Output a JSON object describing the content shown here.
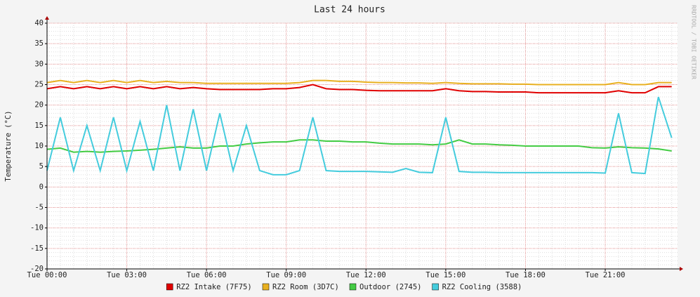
{
  "chart_data": {
    "type": "line",
    "title": "Last 24 hours",
    "y_label": "Temperature (°C)",
    "watermark": "RRDTOOL / TOBI OETIKER",
    "x": [
      0,
      0.5,
      1,
      1.5,
      2,
      2.5,
      3,
      3.5,
      4,
      4.5,
      5,
      5.5,
      6,
      6.5,
      7,
      7.5,
      8,
      8.5,
      9,
      9.5,
      10,
      10.5,
      11,
      11.5,
      12,
      12.5,
      13,
      13.5,
      14,
      14.5,
      15,
      15.5,
      16,
      16.5,
      17,
      17.5,
      18,
      18.5,
      19,
      19.5,
      20,
      20.5,
      21,
      21.5,
      22,
      22.5,
      23,
      23.5
    ],
    "xlim": [
      0,
      23.72
    ],
    "xticks": [
      {
        "value": 0,
        "label": "Tue 00:00"
      },
      {
        "value": 3,
        "label": "Tue 03:00"
      },
      {
        "value": 6,
        "label": "Tue 06:00"
      },
      {
        "value": 9,
        "label": "Tue 09:00"
      },
      {
        "value": 12,
        "label": "Tue 12:00"
      },
      {
        "value": 15,
        "label": "Tue 15:00"
      },
      {
        "value": 18,
        "label": "Tue 18:00"
      },
      {
        "value": 21,
        "label": "Tue 21:00"
      }
    ],
    "ylim": [
      -20,
      40
    ],
    "yticks": [
      -20,
      -15,
      -10,
      -5,
      0,
      5,
      10,
      15,
      20,
      25,
      30,
      35,
      40
    ],
    "grid": true,
    "series": [
      {
        "name": "RZ2 Intake (7F75)",
        "color": "#e00000",
        "values": [
          24,
          24.5,
          24,
          24.5,
          24,
          24.5,
          24,
          24.5,
          24,
          24.5,
          24,
          24.3,
          24,
          23.8,
          23.8,
          23.8,
          23.8,
          24,
          24,
          24.3,
          25,
          24,
          23.8,
          23.8,
          23.6,
          23.5,
          23.5,
          23.5,
          23.5,
          23.5,
          24,
          23.5,
          23.3,
          23.3,
          23.2,
          23.2,
          23.2,
          23,
          23,
          23,
          23,
          23,
          23,
          23.5,
          23,
          23,
          24.5,
          24.5
        ]
      },
      {
        "name": "RZ2 Room (3D7C)",
        "color": "#e8b020",
        "values": [
          25.5,
          26,
          25.5,
          26,
          25.5,
          26,
          25.5,
          26,
          25.5,
          25.8,
          25.5,
          25.5,
          25.3,
          25.3,
          25.3,
          25.3,
          25.3,
          25.3,
          25.3,
          25.5,
          26,
          26,
          25.8,
          25.8,
          25.6,
          25.5,
          25.5,
          25.4,
          25.4,
          25.3,
          25.5,
          25.3,
          25.2,
          25.2,
          25.2,
          25.1,
          25.1,
          25,
          25,
          25,
          25,
          25,
          25,
          25.5,
          25,
          25,
          25.5,
          25.5
        ]
      },
      {
        "name": "Outdoor (2745)",
        "color": "#44cc44",
        "values": [
          9.2,
          9.5,
          8.5,
          8.7,
          8.5,
          8.7,
          8.8,
          9,
          9.2,
          9.5,
          9.8,
          9.5,
          9.5,
          10,
          10,
          10.5,
          10.8,
          11,
          11,
          11.5,
          11.5,
          11.2,
          11.2,
          11,
          11,
          10.7,
          10.5,
          10.5,
          10.5,
          10.3,
          10.5,
          11.5,
          10.5,
          10.5,
          10.3,
          10.2,
          10,
          10,
          10,
          10,
          10,
          9.6,
          9.5,
          9.8,
          9.6,
          9.5,
          9.3,
          8.8
        ]
      },
      {
        "name": "RZ2 Cooling (3588)",
        "color": "#44ccdd",
        "values": [
          4,
          17,
          4,
          15,
          4,
          17,
          4,
          16,
          4,
          20,
          4,
          19,
          4,
          18,
          4,
          15,
          4,
          3,
          3,
          4,
          17,
          4,
          3.8,
          3.8,
          3.8,
          3.7,
          3.6,
          4.5,
          3.6,
          3.5,
          17,
          3.8,
          3.6,
          3.6,
          3.5,
          3.5,
          3.5,
          3.5,
          3.5,
          3.5,
          3.5,
          3.5,
          3.4,
          18,
          3.5,
          3.3,
          22,
          12
        ]
      }
    ]
  }
}
